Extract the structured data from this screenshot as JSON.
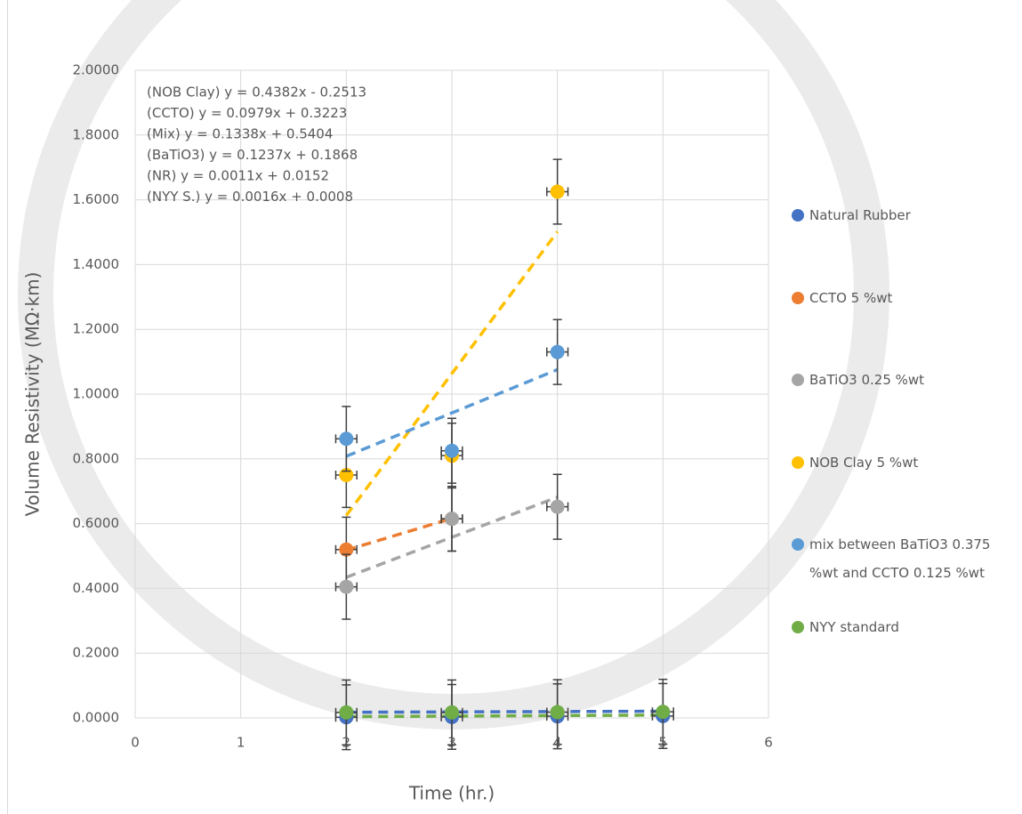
{
  "chart_data": {
    "type": "scatter",
    "xlabel": "Time (hr.)",
    "ylabel": "Volume Resistivity (MΩ·km)",
    "xlim": [
      0,
      6
    ],
    "xticks": [
      0,
      1,
      2,
      3,
      4,
      5,
      6
    ],
    "ylim": [
      0,
      2
    ],
    "yticks": [
      {
        "value": 0,
        "label": "0.0000"
      },
      {
        "value": 0.2,
        "label": "0.2000"
      },
      {
        "value": 0.4,
        "label": "0.4000"
      },
      {
        "value": 0.6,
        "label": "0.6000"
      },
      {
        "value": 0.8,
        "label": "0.8000"
      },
      {
        "value": 1,
        "label": "1.0000"
      },
      {
        "value": 1.2,
        "label": "1.2000"
      },
      {
        "value": 1.4,
        "label": "1.4000"
      },
      {
        "value": 1.6,
        "label": "1.6000"
      },
      {
        "value": 1.8,
        "label": "1.8000"
      },
      {
        "value": 2,
        "label": "2.0000"
      }
    ],
    "grid": true,
    "legend": "right",
    "error_x": 0.1,
    "error_y": 0.1,
    "annotations": [
      "(NOB Clay) y = 0.4382x - 0.2513",
      "(CCTO) y = 0.0979x + 0.3223",
      "(Mix) y = 0.1338x + 0.5404",
      "(BaTiO3) y = 0.1237x + 0.1868",
      "(NR) y = 0.0011x + 0.0152",
      "(NYY S.) y = 0.0016x + 0.0008"
    ],
    "series": [
      {
        "name": "Natural Rubber",
        "color": "#4472c4",
        "x": [
          2,
          3,
          4,
          5
        ],
        "values": [
          0.002,
          0.003,
          0.005,
          0.006
        ],
        "trendline": {
          "slope": 0.0011,
          "intercept": 0.0152
        }
      },
      {
        "name": "CCTO 5 %wt",
        "color": "#ed7d31",
        "x": [
          2,
          3
        ],
        "values": [
          0.52,
          0.615
        ],
        "trendline": {
          "slope": 0.0979,
          "intercept": 0.3223
        }
      },
      {
        "name": "BaTiO3 0.25 %wt",
        "color": "#a5a5a5",
        "x": [
          2,
          3,
          4
        ],
        "values": [
          0.405,
          0.615,
          0.652
        ],
        "trendline": {
          "slope": 0.1237,
          "intercept": 0.1868
        }
      },
      {
        "name": "NOB Clay 5 %wt",
        "color": "#ffc000",
        "x": [
          2,
          3,
          4
        ],
        "values": [
          0.75,
          0.81,
          1.625
        ],
        "trendline": {
          "slope": 0.4382,
          "intercept": -0.2513
        }
      },
      {
        "name": "mix between BaTiO3 0.375 %wt and CCTO 0.125 %wt",
        "color": "#5b9bd5",
        "x": [
          2,
          3,
          4
        ],
        "values": [
          0.862,
          0.825,
          1.13
        ],
        "trendline": {
          "slope": 0.1338,
          "intercept": 0.5404
        }
      },
      {
        "name": "NYY standard",
        "color": "#70ad47",
        "x": [
          2,
          3,
          4,
          5
        ],
        "values": [
          0.017,
          0.017,
          0.018,
          0.019
        ],
        "trendline": {
          "slope": 0.0016,
          "intercept": 0.0008
        }
      }
    ]
  }
}
